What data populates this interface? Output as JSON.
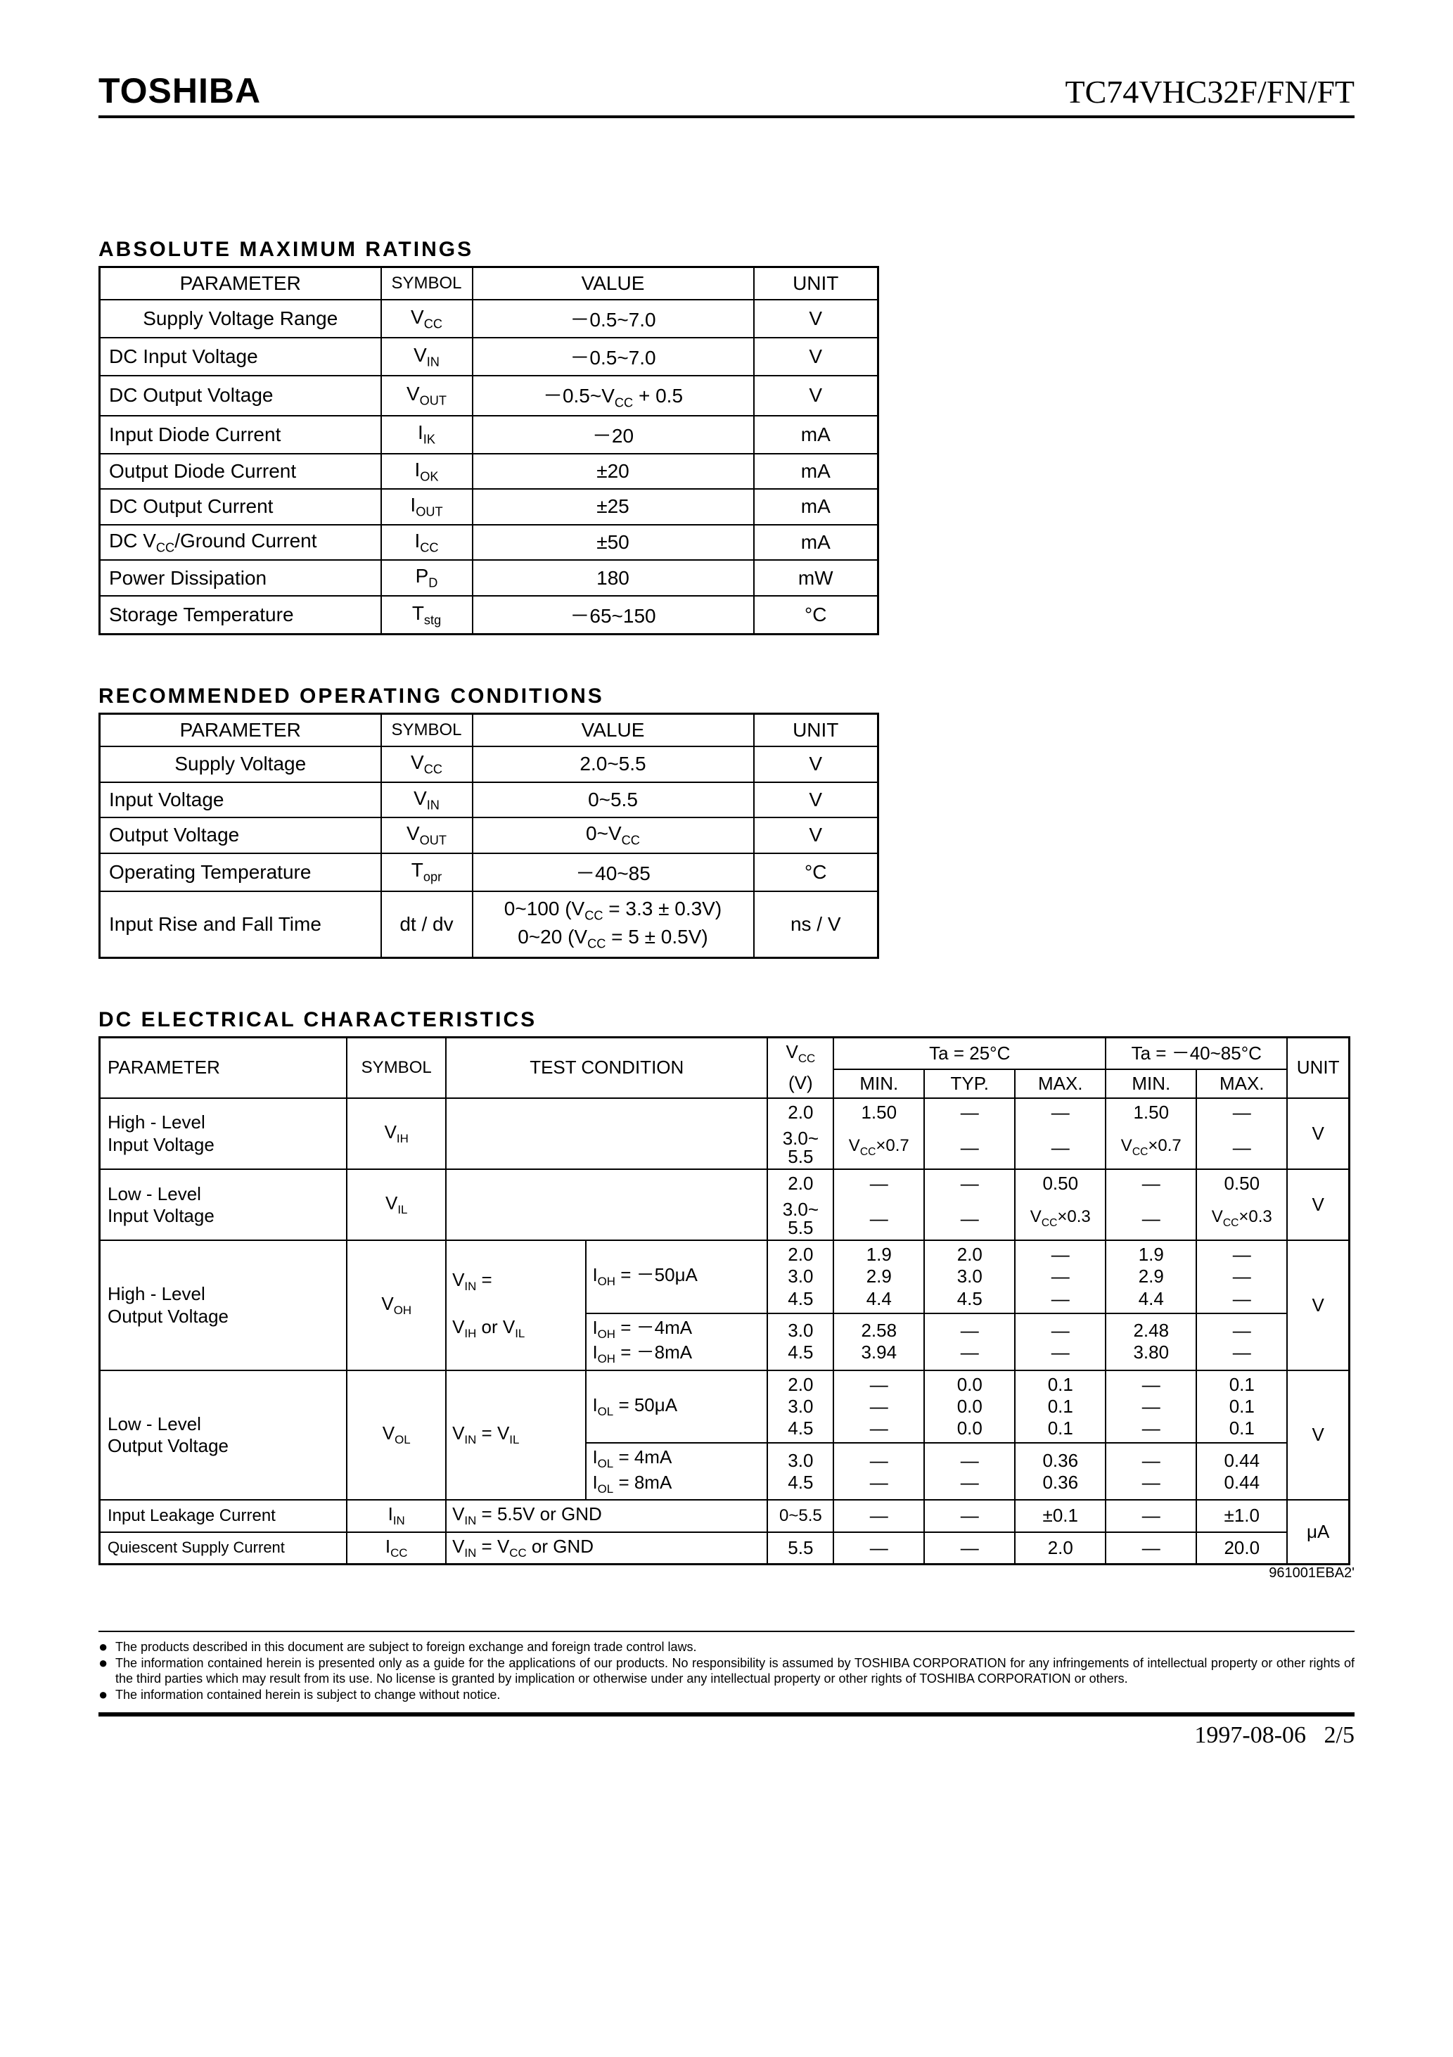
{
  "header": {
    "brand": "TOSHIBA",
    "partno": "TC74VHC32F/FN/FT"
  },
  "sections": {
    "abs_max": "ABSOLUTE  MAXIMUM  RATINGS",
    "rec_op": "RECOMMENDED  OPERATING  CONDITIONS",
    "dc_elec": "DC  ELECTRICAL  CHARACTERISTICS"
  },
  "col_labels": {
    "parameter": "PARAMETER",
    "symbol": "SYMBOL",
    "value": "VALUE",
    "unit": "UNIT",
    "test_cond": "TEST  CONDITION",
    "vcc_v": "(V)",
    "min": "MIN.",
    "typ": "TYP.",
    "max": "MAX.",
    "ta25": "Ta = 25°C",
    "ta_range": "Ta = －40~85°C"
  },
  "table1": {
    "rows": [
      {
        "p": "Supply Voltage Range",
        "sym": "V",
        "sub": "CC",
        "v": "－0.5~7.0",
        "u": "V"
      },
      {
        "p": "DC Input Voltage",
        "sym": "V",
        "sub": "IN",
        "v": "－0.5~7.0",
        "u": "V"
      },
      {
        "p": "DC Output Voltage",
        "sym": "V",
        "sub": "OUT",
        "v": "－0.5~V",
        "vsub": "CC",
        "vtail": " + 0.5",
        "u": "V"
      },
      {
        "p": "Input Diode Current",
        "sym": "I",
        "sub": "IK",
        "v": "－20",
        "u": "mA"
      },
      {
        "p": "Output Diode Current",
        "sym": "I",
        "sub": "OK",
        "v": "±20",
        "u": "mA"
      },
      {
        "p": "DC Output Current",
        "sym": "I",
        "sub": "OUT",
        "v": "±25",
        "u": "mA"
      },
      {
        "p": "DC V",
        "psub": "CC",
        "ptail": "/Ground Current",
        "sym": "I",
        "sub": "CC",
        "v": "±50",
        "u": "mA"
      },
      {
        "p": "Power Dissipation",
        "sym": "P",
        "sub": "D",
        "v": "180",
        "u": "mW"
      },
      {
        "p": "Storage Temperature",
        "sym": "T",
        "sub": "stg",
        "v": "－65~150",
        "u": "°C"
      }
    ]
  },
  "table2": {
    "rows": [
      {
        "p": "Supply Voltage",
        "sym": "V",
        "sub": "CC",
        "v": "2.0~5.5",
        "u": "V"
      },
      {
        "p": "Input Voltage",
        "sym": "V",
        "sub": "IN",
        "v": "0~5.5",
        "u": "V"
      },
      {
        "p": "Output Voltage",
        "sym": "V",
        "sub": "OUT",
        "v": "0~V",
        "vsub": "CC",
        "u": "V"
      },
      {
        "p": "Operating Temperature",
        "sym": "T",
        "sub": "opr",
        "v": "－40~85",
        "u": "°C"
      },
      {
        "p": "Input Rise and Fall Time",
        "sym": "dt / dv",
        "v1": "0~100 (V",
        "v1sub": "CC",
        "v1tail": " = 3.3 ± 0.3V)",
        "v2": "0~20 (V",
        "v2sub": "CC",
        "v2tail": " =   5 ± 0.5V)",
        "u": "ns / V"
      }
    ]
  },
  "table3": {
    "vcc_label": "V",
    "vcc_sub": "CC",
    "rows": {
      "vih": {
        "param": "High - Level\nInput  Voltage",
        "sym": "V",
        "sub": "IH",
        "vcc1": "2.0",
        "min1": "1.50",
        "typ1": "—",
        "max1": "—",
        "rmin1": "1.50",
        "rmax1": "—",
        "vcc2a": "3.0~",
        "vcc2b": "5.5",
        "min2": "V",
        "min2sub": "CC",
        "min2tail": "×0.7",
        "typ2": "—",
        "max2": "—",
        "rmin2": "V",
        "rmin2sub": "CC",
        "rmin2tail": "×0.7",
        "rmax2": "—",
        "unit": "V"
      },
      "vil": {
        "param": "Low - Level\nInput  Voltage",
        "sym": "V",
        "sub": "IL",
        "vcc1": "2.0",
        "min1": "—",
        "typ1": "—",
        "max1": "0.50",
        "rmin1": "—",
        "rmax1": "0.50",
        "vcc2a": "3.0~",
        "vcc2b": "5.5",
        "min2": "—",
        "typ2": "—",
        "max2": "V",
        "max2sub": "CC",
        "max2tail": "×0.3",
        "rmin2": "—",
        "rmax2": "V",
        "rmax2sub": "CC",
        "rmax2tail": "×0.3",
        "unit": "V"
      },
      "voh": {
        "param": "High - Level\nOutput  Voltage",
        "sym": "V",
        "sub": "OH",
        "cond1a": "V",
        "cond1asub": "IN",
        "cond1atail": " =",
        "cond1b": "V",
        "cond1bsub": "IH",
        "cond1bmid": " or V",
        "cond1bsub2": "IL",
        "cond2a": "I",
        "cond2asub": "OH",
        "cond2atail": " = －50μA",
        "vcc_a": "2.0",
        "vcc_b": "3.0",
        "vcc_c": "4.5",
        "min_a": "1.9",
        "min_b": "2.9",
        "min_c": "4.4",
        "typ_a": "2.0",
        "typ_b": "3.0",
        "typ_c": "4.5",
        "max_a": "—",
        "max_b": "—",
        "max_c": "—",
        "rmin_a": "1.9",
        "rmin_b": "2.9",
        "rmin_c": "4.4",
        "rmax_a": "—",
        "rmax_b": "—",
        "rmax_c": "—",
        "cond3a": "I",
        "cond3asub": "OH",
        "cond3atail": " = －4mA",
        "cond3b": "I",
        "cond3bsub": "OH",
        "cond3btail": " = －8mA",
        "vcc_d": "3.0",
        "vcc_e": "4.5",
        "min_d": "2.58",
        "min_e": "3.94",
        "typ_d": "—",
        "typ_e": "—",
        "max_d": "—",
        "max_e": "—",
        "rmin_d": "2.48",
        "rmin_e": "3.80",
        "rmax_d": "—",
        "rmax_e": "—",
        "unit": "V"
      },
      "vol": {
        "param": "Low - Level\nOutput  Voltage",
        "sym": "V",
        "sub": "OL",
        "cond1": "V",
        "cond1sub": "IN",
        "cond1mid": " = V",
        "cond1sub2": "IL",
        "cond2a": "I",
        "cond2asub": "OL",
        "cond2atail": " = 50μA",
        "vcc_a": "2.0",
        "vcc_b": "3.0",
        "vcc_c": "4.5",
        "min_a": "—",
        "min_b": "—",
        "min_c": "—",
        "typ_a": "0.0",
        "typ_b": "0.0",
        "typ_c": "0.0",
        "max_a": "0.1",
        "max_b": "0.1",
        "max_c": "0.1",
        "rmin_a": "—",
        "rmin_b": "—",
        "rmin_c": "—",
        "rmax_a": "0.1",
        "rmax_b": "0.1",
        "rmax_c": "0.1",
        "cond3a": "I",
        "cond3asub": "OL",
        "cond3atail": " = 4mA",
        "cond3b": "I",
        "cond3bsub": "OL",
        "cond3btail": " = 8mA",
        "vcc_d": "3.0",
        "vcc_e": "4.5",
        "min_d": "—",
        "min_e": "—",
        "typ_d": "—",
        "typ_e": "—",
        "max_d": "0.36",
        "max_e": "0.36",
        "rmin_d": "—",
        "rmin_e": "—",
        "rmax_d": "0.44",
        "rmax_e": "0.44",
        "unit": "V"
      },
      "iin": {
        "param": "Input Leakage Current",
        "sym": "I",
        "sub": "IN",
        "cond": "V",
        "condsub": "IN",
        "condtail": " = 5.5V or GND",
        "vcc": "0~5.5",
        "min": "—",
        "typ": "—",
        "max": "±0.1",
        "rmin": "—",
        "rmax": "±1.0"
      },
      "icc": {
        "param": "Quiescent Supply Current",
        "sym": "I",
        "sub": "CC",
        "cond": "V",
        "condsub": "IN",
        "condmid": " = V",
        "condsub2": "CC",
        "condtail": " or GND",
        "vcc": "5.5",
        "min": "—",
        "typ": "—",
        "max": "2.0",
        "rmin": "—",
        "rmax": "20.0"
      },
      "ua_unit": "μA"
    }
  },
  "footcode": "961001EBA2'",
  "footnotes": [
    "The products described in this document are subject to foreign exchange and foreign trade control laws.",
    "The information contained herein is presented only as a guide for the applications of our products. No responsibility is assumed by TOSHIBA CORPORATION for any infringements of intellectual property or other rights of the third parties which may result from its use. No license is granted by implication or otherwise under any intellectual property or other rights of TOSHIBA CORPORATION or others.",
    "The information contained herein is subject to change without notice."
  ],
  "footer": {
    "date": "1997-08-06",
    "page": "2/5"
  }
}
